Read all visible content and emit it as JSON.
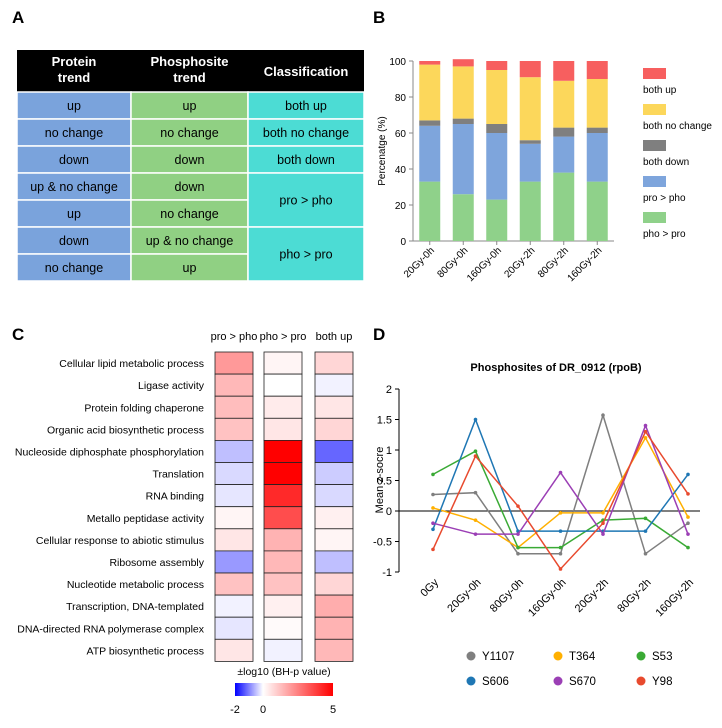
{
  "panel_labels": {
    "a": "A",
    "b": "B",
    "c": "C",
    "d": "D"
  },
  "panel_a": {
    "headers": [
      "Protein trend",
      "Phosphosite trend",
      "Classification"
    ],
    "header_lines": [
      [
        "Protein",
        "trend"
      ],
      [
        "Phosphosite",
        "trend"
      ],
      [
        "Classification"
      ]
    ],
    "rows": [
      {
        "protein": "up",
        "phospho": "up"
      },
      {
        "protein": "no change",
        "phospho": "no change"
      },
      {
        "protein": "down",
        "phospho": "down"
      },
      {
        "protein": "up & no change",
        "phospho": "down"
      },
      {
        "protein": "up",
        "phospho": "no change"
      },
      {
        "protein": "down",
        "phospho": "up & no change"
      },
      {
        "protein": "no change",
        "phospho": "up"
      }
    ],
    "classes": [
      "both up",
      "both no change",
      "both down",
      "pro > pho",
      "pho > pro"
    ],
    "colors": {
      "header": "#000000",
      "protein": "#7aa3dc",
      "phospho": "#90d083",
      "class": "#4cdcd4"
    }
  },
  "chart_data": [
    {
      "type": "bar",
      "stacked": true,
      "title": "",
      "xlabel": "",
      "ylabel": "Percenatge (%)",
      "ylim": [
        0,
        100
      ],
      "yticks": [
        0,
        20,
        40,
        60,
        80,
        100
      ],
      "categories": [
        "20Gy-0h",
        "80Gy-0h",
        "160Gy-0h",
        "20Gy-2h",
        "80Gy-2h",
        "160Gy-2h"
      ],
      "series": [
        {
          "name": "pho > pro",
          "color": "#8fd18a",
          "values": [
            33,
            26,
            23,
            33,
            38,
            33
          ]
        },
        {
          "name": "pro > pho",
          "color": "#7ea5dc",
          "values": [
            31,
            39,
            37,
            21,
            20,
            27
          ]
        },
        {
          "name": "both down",
          "color": "#7f7f7f",
          "values": [
            3,
            3,
            5,
            2,
            5,
            3
          ]
        },
        {
          "name": "both no change",
          "color": "#fcd75b",
          "values": [
            31,
            29,
            30,
            35,
            26,
            27
          ]
        },
        {
          "name": "both up",
          "color": "#f75f5f",
          "values": [
            2,
            4,
            5,
            9,
            11,
            10
          ]
        }
      ],
      "legend_order": [
        "both up",
        "both no change",
        "both down",
        "pro > pho",
        "pho > pro"
      ],
      "legend_position": "right"
    },
    {
      "type": "heatmap",
      "title": "",
      "columns": [
        "pro > pho",
        "pho > pro",
        "both up"
      ],
      "rows": [
        "Cellular lipid metabolic process",
        "Ligase activity",
        "Protein folding chaperone",
        "Organic acid biosynthetic process",
        "Nucleoside diphosphate phosphorylation",
        "Translation",
        "RNA binding",
        "Metallo peptidase activity",
        "Cellular response to abiotic stimulus",
        "Ribosome assembly",
        "Nucleotide metabolic process",
        "Transcription, DNA-templated",
        "DNA-directed RNA polymerase complex",
        "ATP biosynthetic process"
      ],
      "values": [
        [
          2.0,
          0.2,
          0.8
        ],
        [
          1.4,
          0.0,
          -0.1
        ],
        [
          1.3,
          0.4,
          0.5
        ],
        [
          1.2,
          0.5,
          0.8
        ],
        [
          -0.5,
          5.0,
          -1.2
        ],
        [
          -0.3,
          5.0,
          -0.4
        ],
        [
          -0.2,
          4.2,
          -0.3
        ],
        [
          0.2,
          3.5,
          0.3
        ],
        [
          0.5,
          1.5,
          0.2
        ],
        [
          -0.8,
          1.4,
          -0.5
        ],
        [
          1.2,
          1.2,
          0.8
        ],
        [
          -0.1,
          0.3,
          1.6
        ],
        [
          -0.2,
          0.1,
          1.5
        ],
        [
          0.5,
          -0.1,
          1.4
        ]
      ],
      "colorbar": {
        "label": "±log10 (BH-p value)",
        "min": -2,
        "max": 5,
        "ticks": [
          -2,
          0,
          5
        ]
      }
    },
    {
      "type": "line",
      "title": "Phosphosites of DR_0912 (rpoB)",
      "xlabel": "",
      "ylabel": "Mean z-socre",
      "categories": [
        "0Gy",
        "20Gy-0h",
        "80Gy-0h",
        "160Gy-0h",
        "20Gy-2h",
        "80Gy-2h",
        "160Gy-2h"
      ],
      "ylim": [
        -1,
        2
      ],
      "yticks": [
        -1,
        -0.5,
        0,
        0.5,
        1,
        1.5,
        2
      ],
      "series": [
        {
          "name": "Y1107",
          "color": "#7f7f7f",
          "values": [
            0.27,
            0.3,
            -0.7,
            -0.7,
            1.57,
            -0.7,
            -0.2
          ]
        },
        {
          "name": "T364",
          "color": "#ffb000",
          "values": [
            0.05,
            -0.15,
            -0.6,
            -0.03,
            -0.03,
            1.2,
            -0.1
          ]
        },
        {
          "name": "S53",
          "color": "#3aaa35",
          "values": [
            0.6,
            0.98,
            -0.6,
            -0.6,
            -0.15,
            -0.12,
            -0.6
          ]
        },
        {
          "name": "S606",
          "color": "#1f77b4",
          "values": [
            -0.3,
            1.5,
            -0.33,
            -0.33,
            -0.33,
            -0.33,
            0.6
          ]
        },
        {
          "name": "S670",
          "color": "#9b3fb5",
          "values": [
            -0.2,
            -0.38,
            -0.38,
            0.63,
            -0.38,
            1.4,
            -0.38
          ]
        },
        {
          "name": "Y98",
          "color": "#e84a2e",
          "values": [
            -0.63,
            0.9,
            0.08,
            -0.95,
            -0.2,
            1.3,
            0.28
          ]
        }
      ],
      "legend_position": "bottom"
    }
  ]
}
